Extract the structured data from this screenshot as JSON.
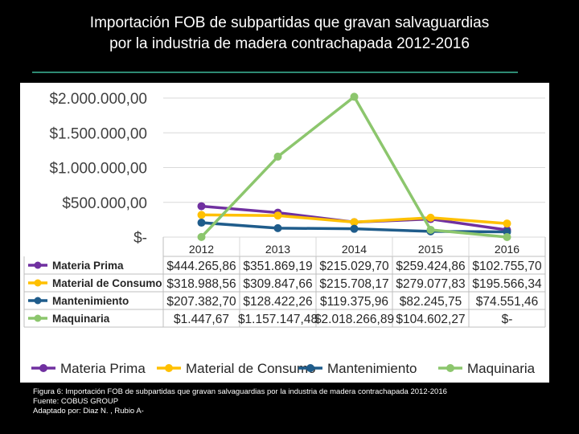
{
  "slide": {
    "title_line1": "Importación FOB de subpartidas que gravan salvaguardias",
    "title_line2": "por la industria de madera contrachapada 2012-2016"
  },
  "caption": {
    "line1": "Figura 6: Importación FOB de subpartidas que gravan salvaguardias por la industria de madera contrachapada 2012-2016",
    "line2": "Fuente:  COBUS GROUP",
    "line3": "Adaptado por: Diaz N. , Rubio  A-"
  },
  "chart_data": {
    "type": "line",
    "title": "Importación FOB de subpartidas que gravan salvaguardias por la industria de madera contrachapada 2012-2016",
    "categories": [
      "2012",
      "2013",
      "2014",
      "2015",
      "2016"
    ],
    "y_ticks": [
      "$2.000.000,00",
      "$1.500.000,00",
      "$1.000.000,00",
      "$500.000,00",
      "$-"
    ],
    "ylim": [
      0,
      2000000
    ],
    "legend_position": "bottom",
    "series": [
      {
        "name": "Materia Prima",
        "color": "#7030a0",
        "values": [
          444265.86,
          351869.19,
          215029.7,
          259424.86,
          102755.7
        ],
        "labels": [
          "$444.265,86",
          "$351.869,19",
          "$215.029,70",
          "$259.424,86",
          "$102.755,70"
        ]
      },
      {
        "name": "Material de Consumo",
        "color": "#ffc000",
        "values": [
          318988.56,
          309847.66,
          215708.17,
          279077.83,
          195566.34
        ],
        "labels": [
          "$318.988,56",
          "$309.847,66",
          "$215.708,17",
          "$279.077,83",
          "$195.566,34"
        ]
      },
      {
        "name": "Mantenimiento",
        "color": "#1f5c8b",
        "values": [
          207382.7,
          128422.26,
          119375.96,
          82245.75,
          74551.46
        ],
        "labels": [
          "$207.382,70",
          "$128.422,26",
          "$119.375,96",
          "$82.245,75",
          "$74.551,46"
        ]
      },
      {
        "name": "Maquinaria",
        "color": "#8cc66d",
        "values": [
          1447.67,
          1157147.48,
          2018266.89,
          104602.27,
          0
        ],
        "labels": [
          "$1.447,67",
          "$1.157.147,48",
          "$2.018.266,89",
          "$104.602,27",
          "$-"
        ]
      }
    ]
  }
}
